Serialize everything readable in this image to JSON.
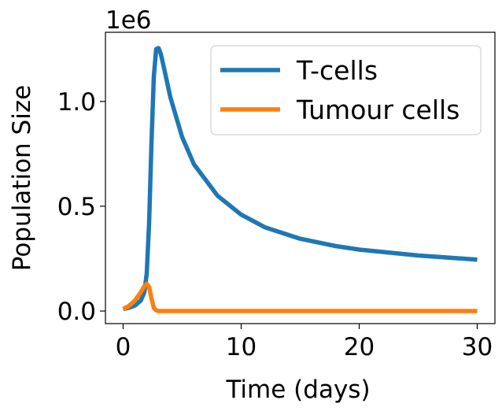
{
  "chart_data": {
    "type": "line",
    "xlabel": "Time (days)",
    "ylabel": "Population Size",
    "y_offset_label": "1e6",
    "y_scale": 1000000,
    "xlim": [
      -1.5,
      31.5
    ],
    "ylim": [
      -60000,
      1330000
    ],
    "xticks": [
      0,
      10,
      20,
      30
    ],
    "xtick_labels": [
      "0",
      "10",
      "20",
      "30"
    ],
    "yticks": [
      0,
      500000,
      1000000
    ],
    "ytick_labels": [
      "0.0",
      "0.5",
      "1.0"
    ],
    "legend_position": "top-right",
    "grid": false,
    "series": [
      {
        "name": "T-cells",
        "color": "#1f77b4",
        "x": [
          0,
          0.5,
          1.0,
          1.5,
          1.8,
          2.0,
          2.2,
          2.4,
          2.6,
          2.8,
          3.0,
          3.2,
          3.5,
          4,
          5,
          6,
          8,
          10,
          12,
          15,
          18,
          20,
          25,
          30
        ],
        "y": [
          10000,
          16000,
          26000,
          50000,
          90000,
          180000,
          420000,
          800000,
          1120000,
          1250000,
          1255000,
          1225000,
          1150000,
          1020000,
          830000,
          700000,
          550000,
          460000,
          400000,
          345000,
          310000,
          293000,
          265000,
          245000
        ]
      },
      {
        "name": "Tumour cells",
        "color": "#ff7f0e",
        "x": [
          0,
          0.5,
          1.0,
          1.5,
          1.8,
          2.0,
          2.2,
          2.4,
          2.6,
          2.8,
          3.0,
          3.5,
          5,
          10,
          20,
          30
        ],
        "y": [
          10000,
          25000,
          50000,
          90000,
          118000,
          130000,
          115000,
          60000,
          15000,
          3000,
          0,
          0,
          0,
          0,
          0,
          0
        ]
      }
    ]
  }
}
